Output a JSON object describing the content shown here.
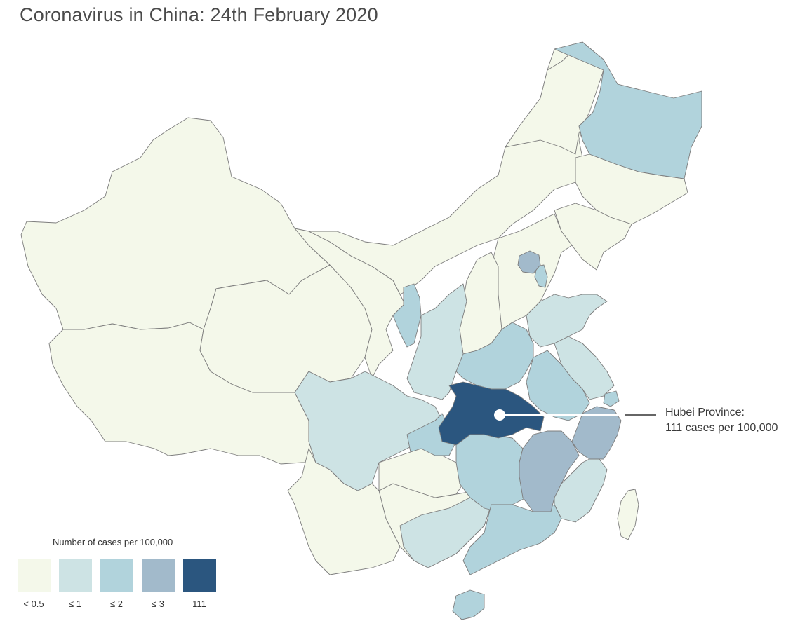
{
  "title": "Coronavirus in China: 24th February 2020",
  "callout": {
    "line1": "Hubei Province:",
    "line2": "111 cases per 100,000"
  },
  "legend": {
    "title": "Number of cases per 100,000",
    "items": [
      {
        "label": "< 0.5",
        "color": "#f4f8ea"
      },
      {
        "label": "≤ 1",
        "color": "#cde3e4"
      },
      {
        "label": "≤ 2",
        "color": "#b1d3dc"
      },
      {
        "label": "≤ 3",
        "color": "#a2bacb"
      },
      {
        "label": "111",
        "color": "#2b567f"
      }
    ]
  },
  "colors": {
    "lt05": "#f4f8ea",
    "le1": "#cde3e4",
    "le2": "#b1d3dc",
    "le3": "#a2bacb",
    "hubei": "#2b567f",
    "border": "#7d7d7d"
  }
}
